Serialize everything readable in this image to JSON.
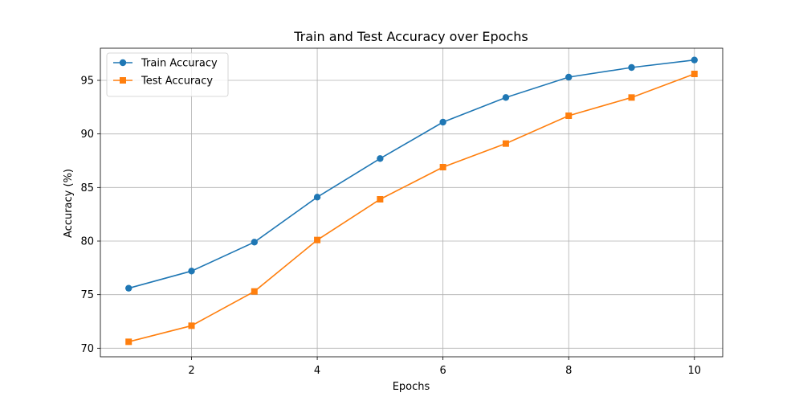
{
  "chart_data": {
    "type": "line",
    "title": "Train and Test Accuracy over Epochs",
    "xlabel": "Epochs",
    "ylabel": "Accuracy (%)",
    "x": [
      1,
      2,
      3,
      4,
      5,
      6,
      7,
      8,
      9,
      10
    ],
    "xlim": [
      0.55,
      10.45
    ],
    "ylim": [
      69.2,
      98.0
    ],
    "xticks": [
      2,
      4,
      6,
      8,
      10
    ],
    "yticks": [
      70,
      75,
      80,
      85,
      90,
      95
    ],
    "grid": true,
    "legend_position": "upper-left",
    "series": [
      {
        "name": "Train Accuracy",
        "color": "#1f77b4",
        "marker": "circle",
        "values": [
          75.6,
          77.2,
          79.9,
          84.1,
          87.7,
          91.1,
          93.4,
          95.3,
          96.2,
          96.9
        ]
      },
      {
        "name": "Test Accuracy",
        "color": "#ff7f0e",
        "marker": "square",
        "values": [
          70.6,
          72.1,
          75.3,
          80.1,
          83.9,
          86.9,
          89.1,
          91.7,
          93.4,
          95.6
        ]
      }
    ]
  }
}
